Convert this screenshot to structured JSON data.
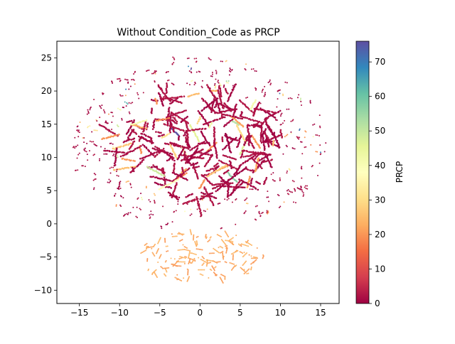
{
  "chart_data": {
    "type": "scatter",
    "title": "Without Condition_Code as PRCP",
    "xlabel": "",
    "ylabel": "",
    "xlim": [
      -17.8,
      17.3
    ],
    "ylim": [
      -12,
      27.5
    ],
    "x_ticks": [
      -15,
      -10,
      -5,
      0,
      5,
      10,
      15
    ],
    "x_tick_labels": [
      "−15",
      "−10",
      "−5",
      "0",
      "5",
      "10",
      "15"
    ],
    "y_ticks": [
      -10,
      -5,
      0,
      5,
      10,
      15,
      20,
      25
    ],
    "y_tick_labels": [
      "−10",
      "−5",
      "0",
      "5",
      "10",
      "15",
      "20",
      "25"
    ],
    "grid": false,
    "colorbar": {
      "label": "PRCP",
      "min": 0,
      "max": 76,
      "ticks": [
        0,
        10,
        20,
        30,
        40,
        50,
        60,
        70
      ],
      "tick_labels": [
        "0",
        "10",
        "20",
        "30",
        "40",
        "50",
        "60",
        "70"
      ],
      "colormap": "Spectral",
      "stops": [
        "#9e0142",
        "#d53e4f",
        "#f46d43",
        "#fdae61",
        "#fee08b",
        "#ffffbf",
        "#e6f598",
        "#abdda4",
        "#66c2a5",
        "#3288bd",
        "#5e4fa2"
      ]
    },
    "clusters": [
      {
        "name": "upper",
        "center": [
          0,
          12
        ],
        "radius_x": 16,
        "radius_y": 13,
        "dominant_prcp": 0
      },
      {
        "name": "lower",
        "center": [
          0,
          -5
        ],
        "radius_x": 8,
        "radius_y": 4,
        "dominant_prcp": 22
      }
    ]
  }
}
